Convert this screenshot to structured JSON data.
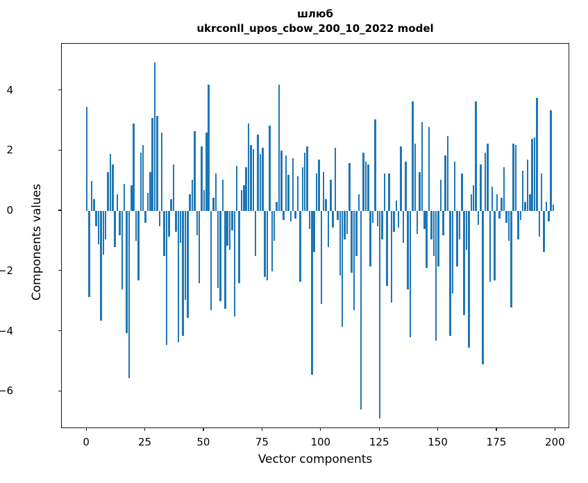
{
  "figure": {
    "title_line1": "шлюб",
    "title_line2": "ukrconll_upos_cbow_200_10_2022 model"
  },
  "chart_data": {
    "type": "bar",
    "title": "шлюб",
    "subtitle": "ukrconll_upos_cbow_200_10_2022 model",
    "xlabel": "Vector components",
    "ylabel": "Components values",
    "bar_color": "#1f77b4",
    "grid": false,
    "legend": "none",
    "n_components": 200,
    "xlim": [
      -10.7,
      206.1
    ],
    "ylim": [
      -7.24,
      5.56
    ],
    "xticks": [
      0,
      25,
      50,
      75,
      100,
      125,
      150,
      175,
      200
    ],
    "ytick_labels": [
      "4",
      "2",
      "0",
      "−2",
      "−4",
      "−6"
    ],
    "yticks": [
      4,
      2,
      0,
      -2,
      -4,
      -6
    ],
    "values": [
      3.45,
      -2.85,
      1.0,
      0.4,
      -0.5,
      -1.1,
      -3.65,
      -1.45,
      -0.95,
      1.3,
      1.9,
      1.55,
      -1.2,
      0.55,
      -0.8,
      -2.6,
      0.9,
      -4.05,
      -5.55,
      0.85,
      2.9,
      -1.0,
      -2.3,
      1.95,
      2.2,
      -0.4,
      0.6,
      1.3,
      3.1,
      4.93,
      3.15,
      -0.5,
      2.6,
      -1.5,
      -4.45,
      -0.85,
      0.4,
      1.55,
      -0.7,
      -4.35,
      -1.05,
      -4.15,
      -2.95,
      -3.55,
      0.55,
      1.05,
      2.65,
      -0.8,
      -2.4,
      2.15,
      0.7,
      2.6,
      4.2,
      -3.3,
      0.45,
      1.25,
      -2.55,
      -3.0,
      1.05,
      -3.25,
      -1.15,
      -1.3,
      -0.65,
      -3.5,
      1.5,
      -2.4,
      0.7,
      0.85,
      1.45,
      2.9,
      2.2,
      2.05,
      -1.5,
      2.55,
      1.9,
      2.1,
      -2.2,
      -2.3,
      2.85,
      -2.0,
      -1.0,
      0.3,
      4.2,
      2.0,
      -0.3,
      1.85,
      1.2,
      -0.35,
      1.75,
      -0.25,
      1.15,
      -2.35,
      1.45,
      1.95,
      2.15,
      -0.6,
      -5.45,
      -1.35,
      1.25,
      1.7,
      -3.1,
      1.3,
      0.4,
      -1.2,
      1.05,
      -0.55,
      2.1,
      -0.3,
      -2.15,
      -3.85,
      -0.95,
      -0.75,
      1.6,
      -2.05,
      -3.3,
      -1.5,
      0.55,
      -6.6,
      1.95,
      1.65,
      1.55,
      -1.85,
      -0.4,
      3.05,
      -0.5,
      -6.9,
      -0.95,
      1.25,
      -2.5,
      1.25,
      -3.05,
      -0.7,
      0.35,
      -0.55,
      2.15,
      -1.05,
      1.65,
      -2.6,
      -4.2,
      3.65,
      2.25,
      -0.75,
      1.3,
      2.95,
      -0.6,
      -1.9,
      2.8,
      -0.95,
      -1.5,
      -4.3,
      -1.85,
      1.05,
      -0.8,
      1.85,
      2.5,
      -4.15,
      -2.75,
      1.65,
      -1.85,
      -0.95,
      1.25,
      -3.45,
      -1.3,
      -4.55,
      0.55,
      0.85,
      3.65,
      -0.45,
      1.55,
      -5.1,
      1.95,
      2.25,
      -2.35,
      0.8,
      -2.3,
      0.55,
      -0.25,
      0.45,
      1.45,
      -0.4,
      -1.0,
      -3.2,
      2.25,
      2.2,
      -0.95,
      -0.3,
      1.35,
      0.3,
      1.7,
      0.55,
      2.4,
      2.45,
      3.75,
      -0.85,
      1.25,
      -1.35,
      0.3,
      -0.35,
      3.35,
      0.2
    ]
  }
}
